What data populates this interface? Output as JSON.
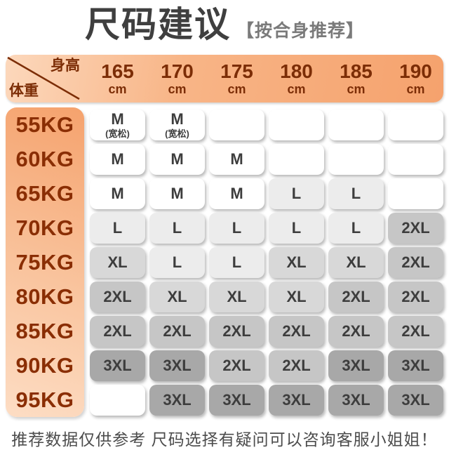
{
  "page": {
    "title": "尺码建议",
    "subtitle": "【按合身推荐】",
    "footer": "推荐数据仅供参考 尺码选择有疑问可以咨询客服小姐姐！"
  },
  "table": {
    "corner": {
      "top_right": "身高",
      "bottom_left": "体重"
    },
    "height_unit": "cm",
    "heights": [
      "165",
      "170",
      "175",
      "180",
      "185",
      "190"
    ],
    "rows": [
      {
        "weight": "55KG",
        "cells": [
          {
            "size": "M",
            "note": "(宽松)"
          },
          {
            "size": "M",
            "note": "(宽松)"
          },
          {
            "size": ""
          },
          {
            "size": ""
          },
          {
            "size": ""
          },
          {
            "size": ""
          }
        ]
      },
      {
        "weight": "60KG",
        "cells": [
          {
            "size": "M"
          },
          {
            "size": "M"
          },
          {
            "size": "M"
          },
          {
            "size": ""
          },
          {
            "size": ""
          },
          {
            "size": ""
          }
        ]
      },
      {
        "weight": "65KG",
        "cells": [
          {
            "size": "M"
          },
          {
            "size": "M"
          },
          {
            "size": "M"
          },
          {
            "size": "L"
          },
          {
            "size": "L"
          },
          {
            "size": ""
          }
        ]
      },
      {
        "weight": "70KG",
        "cells": [
          {
            "size": "L"
          },
          {
            "size": "L"
          },
          {
            "size": "L"
          },
          {
            "size": "L"
          },
          {
            "size": "L"
          },
          {
            "size": "2XL"
          }
        ]
      },
      {
        "weight": "75KG",
        "cells": [
          {
            "size": "XL"
          },
          {
            "size": "L"
          },
          {
            "size": "L"
          },
          {
            "size": "XL"
          },
          {
            "size": "XL"
          },
          {
            "size": "2XL"
          }
        ]
      },
      {
        "weight": "80KG",
        "cells": [
          {
            "size": "2XL"
          },
          {
            "size": "XL"
          },
          {
            "size": "XL"
          },
          {
            "size": "XL"
          },
          {
            "size": "2XL"
          },
          {
            "size": "2XL"
          }
        ]
      },
      {
        "weight": "85KG",
        "cells": [
          {
            "size": "2XL"
          },
          {
            "size": "2XL"
          },
          {
            "size": "2XL"
          },
          {
            "size": "2XL"
          },
          {
            "size": "2XL"
          },
          {
            "size": "2XL"
          }
        ]
      },
      {
        "weight": "90KG",
        "cells": [
          {
            "size": "3XL"
          },
          {
            "size": "3XL"
          },
          {
            "size": "2XL"
          },
          {
            "size": "2XL"
          },
          {
            "size": "3XL"
          },
          {
            "size": "3XL"
          }
        ]
      },
      {
        "weight": "95KG",
        "cells": [
          {
            "size": ""
          },
          {
            "size": "3XL"
          },
          {
            "size": "3XL"
          },
          {
            "size": "3XL"
          },
          {
            "size": "3XL"
          },
          {
            "size": "3XL"
          }
        ]
      }
    ]
  },
  "chart_data": {
    "type": "table",
    "title": "尺码建议 【按合身推荐】",
    "column_header": "身高",
    "row_header": "体重",
    "columns": [
      "165cm",
      "170cm",
      "175cm",
      "180cm",
      "185cm",
      "190cm"
    ],
    "row_labels": [
      "55KG",
      "60KG",
      "65KG",
      "70KG",
      "75KG",
      "80KG",
      "85KG",
      "90KG",
      "95KG"
    ],
    "values": [
      [
        "M(宽松)",
        "M(宽松)",
        "",
        "",
        "",
        ""
      ],
      [
        "M",
        "M",
        "M",
        "",
        "",
        ""
      ],
      [
        "M",
        "M",
        "M",
        "L",
        "L",
        ""
      ],
      [
        "L",
        "L",
        "L",
        "L",
        "L",
        "2XL"
      ],
      [
        "XL",
        "L",
        "L",
        "XL",
        "XL",
        "2XL"
      ],
      [
        "2XL",
        "XL",
        "XL",
        "XL",
        "2XL",
        "2XL"
      ],
      [
        "2XL",
        "2XL",
        "2XL",
        "2XL",
        "2XL",
        "2XL"
      ],
      [
        "3XL",
        "3XL",
        "2XL",
        "2XL",
        "3XL",
        "3XL"
      ],
      [
        "",
        "3XL",
        "3XL",
        "3XL",
        "3XL",
        "3XL"
      ]
    ],
    "footnote": "推荐数据仅供参考 尺码选择有疑问可以咨询客服小姐姐！"
  },
  "colors": {
    "accent_orange_light": "#fcd8bc",
    "accent_orange": "#f5a26d",
    "header_text_brown": "#7c2d06",
    "weight_text_brown": "#8a2e04",
    "title_text": "#3f3f3f",
    "subtitle_text": "#7a7a7a",
    "cell_text": "#3d3d3d",
    "size_m_bg": "#ffffff",
    "size_l_bg": "#ececec",
    "size_xl_bg": "#d8d8d8",
    "size_2xl_bg": "#c6c6c6",
    "size_3xl_bg": "#a8a8a8",
    "empty_bg": "#ffffff"
  }
}
